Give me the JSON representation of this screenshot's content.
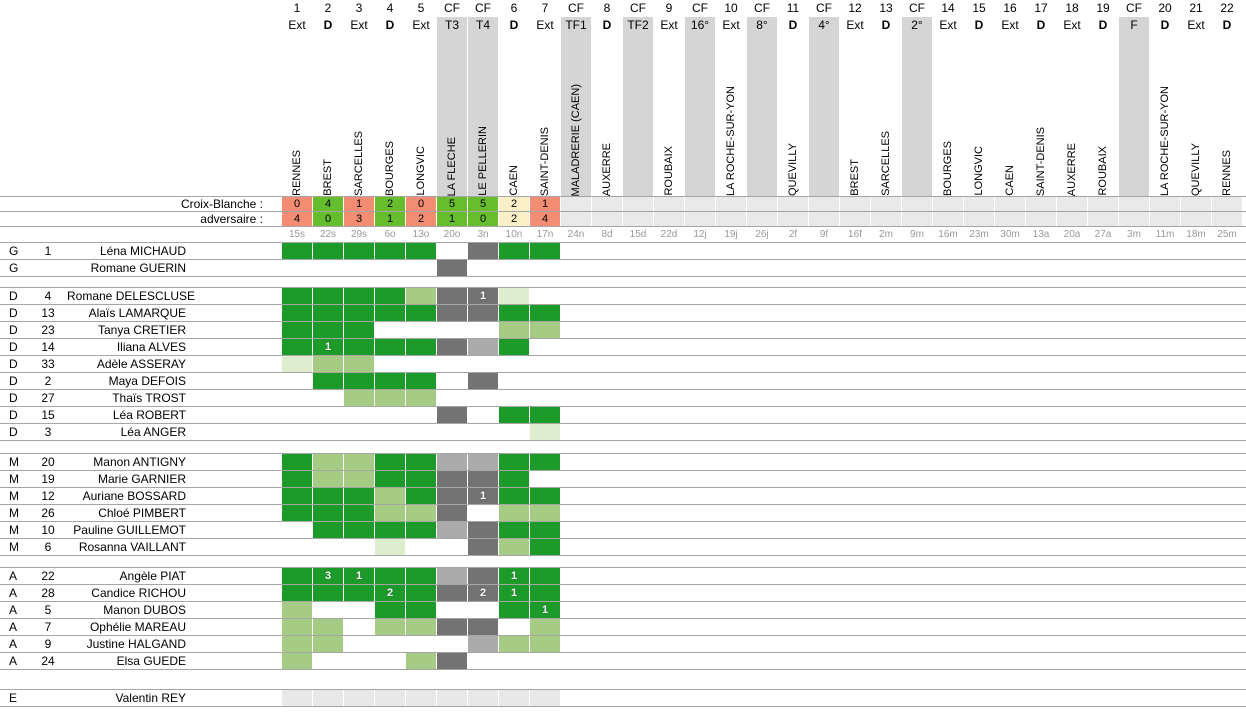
{
  "labels": {
    "team": "Croix-Blanche :",
    "opponent": "adversaire :"
  },
  "colors": {
    "cell_dark_green": "#1d9b2a",
    "cell_medium_green": "#a6cb84",
    "cell_pale_green": "#dfedcf",
    "cell_dark_gray": "#737373",
    "cell_light_gray": "#ababab",
    "cell_reserve_gray": "#e8e8e8",
    "cup_band_gray": "#d5d5d5",
    "score_win_green": "#66bd2e",
    "score_loss_salmon": "#f28c73",
    "score_draw_cream": "#faf0c8",
    "score_empty_gray": "#e9e9e9",
    "date_text_gray": "#999999",
    "grid_line_gray": "#a6a6a6"
  },
  "cell_legend": {
    "F": "dark-green",
    "P": "medium-green",
    "L": "pale-green",
    "N": "dark-gray",
    "S": "light-gray",
    "E": "pale-gray-reserve",
    "": "blank"
  },
  "columns": [
    {
      "num": "1",
      "type": "Ext",
      "cf": false,
      "opponent": "RENNES",
      "date": "15s",
      "score_us": "0",
      "score_them": "4",
      "result": "loss"
    },
    {
      "num": "2",
      "type": "D",
      "cf": false,
      "opponent": "BREST",
      "date": "22s",
      "score_us": "4",
      "score_them": "0",
      "result": "win"
    },
    {
      "num": "3",
      "type": "Ext",
      "cf": false,
      "opponent": "SARCELLES",
      "date": "29s",
      "score_us": "1",
      "score_them": "3",
      "result": "loss"
    },
    {
      "num": "4",
      "type": "D",
      "cf": false,
      "opponent": "BOURGES",
      "date": "6o",
      "score_us": "2",
      "score_them": "1",
      "result": "win"
    },
    {
      "num": "5",
      "type": "Ext",
      "cf": false,
      "opponent": "LONGVIC",
      "date": "13o",
      "score_us": "0",
      "score_them": "2",
      "result": "loss"
    },
    {
      "num": "CF",
      "type": "T3",
      "cf": true,
      "opponent": "LA FLECHE",
      "date": "20o",
      "score_us": "5",
      "score_them": "1",
      "result": "win"
    },
    {
      "num": "CF",
      "type": "T4",
      "cf": true,
      "opponent": "LE PELLERIN",
      "date": "3n",
      "score_us": "5",
      "score_them": "0",
      "result": "win"
    },
    {
      "num": "6",
      "type": "D",
      "cf": false,
      "opponent": "CAEN",
      "date": "10n",
      "score_us": "2",
      "score_them": "2",
      "result": "draw"
    },
    {
      "num": "7",
      "type": "Ext",
      "cf": false,
      "opponent": "SAINT-DENIS",
      "date": "17n",
      "score_us": "1",
      "score_them": "4",
      "result": "loss"
    },
    {
      "num": "CF",
      "type": "TF1",
      "cf": true,
      "opponent": "MALADRERIE (CAEN)",
      "date": "24n",
      "score_us": "",
      "score_them": "",
      "result": ""
    },
    {
      "num": "8",
      "type": "D",
      "cf": false,
      "opponent": "AUXERRE",
      "date": "8d",
      "score_us": "",
      "score_them": "",
      "result": ""
    },
    {
      "num": "CF",
      "type": "TF2",
      "cf": true,
      "opponent": "",
      "date": "15d",
      "score_us": "",
      "score_them": "",
      "result": ""
    },
    {
      "num": "9",
      "type": "Ext",
      "cf": false,
      "opponent": "ROUBAIX",
      "date": "22d",
      "score_us": "",
      "score_them": "",
      "result": ""
    },
    {
      "num": "CF",
      "type": "16°",
      "cf": true,
      "opponent": "",
      "date": "12j",
      "score_us": "",
      "score_them": "",
      "result": ""
    },
    {
      "num": "10",
      "type": "Ext",
      "cf": false,
      "opponent": "LA ROCHE-SUR-YON",
      "date": "19j",
      "score_us": "",
      "score_them": "",
      "result": ""
    },
    {
      "num": "CF",
      "type": "8°",
      "cf": true,
      "opponent": "",
      "date": "26j",
      "score_us": "",
      "score_them": "",
      "result": ""
    },
    {
      "num": "11",
      "type": "D",
      "cf": false,
      "opponent": "QUEVILLY",
      "date": "2f",
      "score_us": "",
      "score_them": "",
      "result": ""
    },
    {
      "num": "CF",
      "type": "4°",
      "cf": true,
      "opponent": "",
      "date": "9f",
      "score_us": "",
      "score_them": "",
      "result": ""
    },
    {
      "num": "12",
      "type": "Ext",
      "cf": false,
      "opponent": "BREST",
      "date": "16f",
      "score_us": "",
      "score_them": "",
      "result": ""
    },
    {
      "num": "13",
      "type": "D",
      "cf": false,
      "opponent": "SARCELLES",
      "date": "2m",
      "score_us": "",
      "score_them": "",
      "result": ""
    },
    {
      "num": "CF",
      "type": "2°",
      "cf": true,
      "opponent": "",
      "date": "9m",
      "score_us": "",
      "score_them": "",
      "result": ""
    },
    {
      "num": "14",
      "type": "Ext",
      "cf": false,
      "opponent": "BOURGES",
      "date": "16m",
      "score_us": "",
      "score_them": "",
      "result": ""
    },
    {
      "num": "15",
      "type": "D",
      "cf": false,
      "opponent": "LONGVIC",
      "date": "23m",
      "score_us": "",
      "score_them": "",
      "result": ""
    },
    {
      "num": "16",
      "type": "Ext",
      "cf": false,
      "opponent": "CAEN",
      "date": "30m",
      "score_us": "",
      "score_them": "",
      "result": ""
    },
    {
      "num": "17",
      "type": "D",
      "cf": false,
      "opponent": "SAINT-DENIS",
      "date": "13a",
      "score_us": "",
      "score_them": "",
      "result": ""
    },
    {
      "num": "18",
      "type": "Ext",
      "cf": false,
      "opponent": "AUXERRE",
      "date": "20a",
      "score_us": "",
      "score_them": "",
      "result": ""
    },
    {
      "num": "19",
      "type": "D",
      "cf": false,
      "opponent": "ROUBAIX",
      "date": "27a",
      "score_us": "",
      "score_them": "",
      "result": ""
    },
    {
      "num": "CF",
      "type": "F",
      "cf": true,
      "opponent": "",
      "date": "3m",
      "score_us": "",
      "score_them": "",
      "result": ""
    },
    {
      "num": "20",
      "type": "D",
      "cf": false,
      "opponent": "LA ROCHE-SUR-YON",
      "date": "11m",
      "score_us": "",
      "score_them": "",
      "result": ""
    },
    {
      "num": "21",
      "type": "Ext",
      "cf": false,
      "opponent": "QUEVILLY",
      "date": "18m",
      "score_us": "",
      "score_them": "",
      "result": ""
    },
    {
      "num": "22",
      "type": "D",
      "cf": false,
      "opponent": "RENNES",
      "date": "25m",
      "score_us": "",
      "score_them": "",
      "result": ""
    }
  ],
  "groups": [
    {
      "gap_after": 11,
      "players": [
        {
          "pos": "G",
          "num": "1",
          "name": "Léna MICHAUD",
          "cells": [
            "F",
            "F",
            "F",
            "F",
            "F",
            "",
            "N",
            "F",
            "F"
          ]
        },
        {
          "pos": "G",
          "num": "",
          "name": "Romane GUERIN",
          "cells": [
            "",
            "",
            "",
            "",
            "",
            "N",
            "",
            "",
            ""
          ]
        }
      ]
    },
    {
      "gap_after": 13,
      "players": [
        {
          "pos": "D",
          "num": "4",
          "name": "Romane DELESCLUSE",
          "cells": [
            "F",
            "F",
            "F",
            "F",
            "P",
            "N",
            "N1",
            "L",
            ""
          ]
        },
        {
          "pos": "D",
          "num": "13",
          "name": "Alaïs LAMARQUE",
          "cells": [
            "F",
            "F",
            "F",
            "F",
            "F",
            "N",
            "N",
            "F",
            "F"
          ]
        },
        {
          "pos": "D",
          "num": "23",
          "name": "Tanya CRETIER",
          "cells": [
            "F",
            "F",
            "F",
            "",
            "",
            "",
            "",
            "P",
            "P"
          ]
        },
        {
          "pos": "D",
          "num": "14",
          "name": "Iliana ALVES",
          "cells": [
            "F",
            "F1",
            "F",
            "F",
            "F",
            "N",
            "S",
            "F",
            ""
          ]
        },
        {
          "pos": "D",
          "num": "33",
          "name": "Adèle ASSERAY",
          "cells": [
            "L",
            "P",
            "P",
            "",
            "",
            "",
            "",
            "",
            ""
          ]
        },
        {
          "pos": "D",
          "num": "2",
          "name": "Maya DEFOIS",
          "cells": [
            "",
            "F",
            "F",
            "F",
            "F",
            "",
            "N",
            "",
            ""
          ]
        },
        {
          "pos": "D",
          "num": "27",
          "name": "Thaïs TROST",
          "cells": [
            "",
            "",
            "P",
            "P",
            "P",
            "",
            "",
            "",
            ""
          ]
        },
        {
          "pos": "D",
          "num": "15",
          "name": "Léa ROBERT",
          "cells": [
            "",
            "",
            "",
            "",
            "",
            "N",
            "",
            "F",
            "F"
          ]
        },
        {
          "pos": "D",
          "num": "3",
          "name": "Léa ANGER",
          "cells": [
            "",
            "",
            "",
            "",
            "",
            "",
            "",
            "",
            "L"
          ]
        }
      ]
    },
    {
      "gap_after": 12,
      "players": [
        {
          "pos": "M",
          "num": "20",
          "name": "Manon ANTIGNY",
          "cells": [
            "F",
            "P",
            "P",
            "F",
            "F",
            "S",
            "S",
            "F",
            "F"
          ]
        },
        {
          "pos": "M",
          "num": "19",
          "name": "Marie GARNIER",
          "cells": [
            "F",
            "P",
            "P",
            "F",
            "F",
            "N",
            "N",
            "F",
            ""
          ]
        },
        {
          "pos": "M",
          "num": "12",
          "name": "Auriane BOSSARD",
          "cells": [
            "F",
            "F",
            "F",
            "P",
            "F",
            "N",
            "N1",
            "F",
            "F"
          ]
        },
        {
          "pos": "M",
          "num": "26",
          "name": "Chloé PIMBERT",
          "cells": [
            "F",
            "F",
            "F",
            "P",
            "P",
            "N",
            "",
            "P",
            "P"
          ]
        },
        {
          "pos": "M",
          "num": "10",
          "name": "Pauline GUILLEMOT",
          "cells": [
            "",
            "F",
            "F",
            "F",
            "F",
            "S",
            "N",
            "F",
            "F"
          ]
        },
        {
          "pos": "M",
          "num": "6",
          "name": "Rosanna VAILLANT",
          "cells": [
            "",
            "",
            "",
            "L",
            "",
            "",
            "N",
            "P",
            "F"
          ]
        }
      ]
    },
    {
      "gap_after": 20,
      "players": [
        {
          "pos": "A",
          "num": "22",
          "name": "Angèle PIAT",
          "cells": [
            "F",
            "F3",
            "F1",
            "F",
            "F",
            "S",
            "N",
            "F1",
            "F"
          ]
        },
        {
          "pos": "A",
          "num": "28",
          "name": "Candice RICHOU",
          "cells": [
            "F",
            "F",
            "F",
            "F2",
            "F",
            "N",
            "N2",
            "F1",
            "F"
          ]
        },
        {
          "pos": "A",
          "num": "5",
          "name": "Manon DUBOS",
          "cells": [
            "P",
            "",
            "",
            "F",
            "F",
            "",
            "",
            "F",
            "F1"
          ]
        },
        {
          "pos": "A",
          "num": "7",
          "name": "Ophélie MAREAU",
          "cells": [
            "P",
            "P",
            "",
            "P",
            "P",
            "N",
            "N",
            "",
            "P"
          ]
        },
        {
          "pos": "A",
          "num": "9",
          "name": "Justine HALGAND",
          "cells": [
            "P",
            "P",
            "",
            "",
            "",
            "",
            "S",
            "P",
            "P"
          ]
        },
        {
          "pos": "A",
          "num": "24",
          "name": "Elsa GUEDE",
          "cells": [
            "P",
            "",
            "",
            "",
            "P",
            "N",
            "",
            "",
            ""
          ]
        }
      ]
    },
    {
      "gap_after": 0,
      "players": [
        {
          "pos": "E",
          "num": "",
          "name": "Valentin REY",
          "cells": [
            "E",
            "E",
            "E",
            "E",
            "E",
            "E",
            "E",
            "E",
            "E"
          ]
        }
      ]
    }
  ]
}
